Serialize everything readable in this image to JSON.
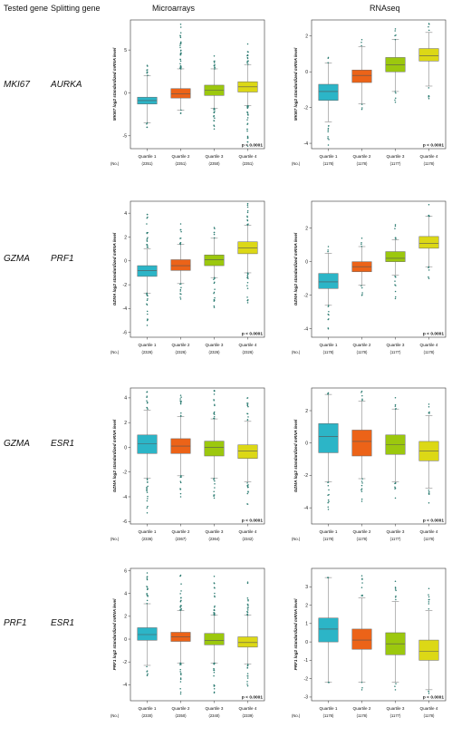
{
  "header": {
    "tested_gene": "Tested gene",
    "splitting_gene": "Splitting gene",
    "microarrays": "Microarrays",
    "rnaseq": "RNAseq"
  },
  "rows": [
    {
      "tested": "MKI67",
      "splitting": "AURKA"
    },
    {
      "tested": "GZMA",
      "splitting": "PRF1"
    },
    {
      "tested": "GZMA",
      "splitting": "ESR1"
    },
    {
      "tested": "PRF1",
      "splitting": "ESR1"
    }
  ],
  "colors": {
    "q1": "#2cb5c7",
    "q2": "#ec6318",
    "q3": "#9cc80e",
    "q4": "#dcd816",
    "outlier": "#2a7a70"
  },
  "chart_data": [
    {
      "type": "box",
      "panel": "microarray-mki67-aurka",
      "ylabel": "MKI67 log2 standardized mRNA level",
      "ylim": [
        -6.5,
        8.5
      ],
      "yticks": [
        -5,
        0,
        5
      ],
      "categories": [
        "Quartile 1",
        "Quartile 2",
        "Quartile 3",
        "Quartile 4"
      ],
      "n_label": "(No.)",
      "n": [
        "(2351)",
        "(2351)",
        "(2350)",
        "(2351)"
      ],
      "boxes": [
        {
          "whislo": -3.5,
          "q1": -1.3,
          "med": -0.9,
          "q3": -0.5,
          "whishi": 2.0,
          "outlo": -4.0,
          "outhi": 3.2
        },
        {
          "whislo": -2.0,
          "q1": -0.6,
          "med": -0.1,
          "q3": 0.5,
          "whishi": 2.8,
          "outlo": -2.4,
          "outhi": 8.0
        },
        {
          "whislo": -1.8,
          "q1": -0.3,
          "med": 0.3,
          "q3": 0.9,
          "whishi": 2.8,
          "outlo": -4.2,
          "outhi": 4.3
        },
        {
          "whislo": -1.5,
          "q1": 0.1,
          "med": 0.7,
          "q3": 1.3,
          "whishi": 3.3,
          "outlo": -6.2,
          "outhi": 5.7
        }
      ],
      "pvalue": "p < 0.0001"
    },
    {
      "type": "box",
      "panel": "rnaseq-mki67-aurka",
      "ylabel": "MKI67 log2 standardized mRNA level",
      "ylim": [
        -4.3,
        2.9
      ],
      "yticks": [
        -4,
        -2,
        0,
        2
      ],
      "categories": [
        "Quartile 1",
        "Quartile 2",
        "Quartile 3",
        "Quartile 4"
      ],
      "n_label": "(No.)",
      "n": [
        "(1178)",
        "(1178)",
        "(1177)",
        "(1178)"
      ],
      "boxes": [
        {
          "whislo": -2.8,
          "q1": -1.6,
          "med": -1.1,
          "q3": -0.7,
          "whishi": 0.5,
          "outlo": -4.1,
          "outhi": 0.8
        },
        {
          "whislo": -1.8,
          "q1": -0.6,
          "med": -0.2,
          "q3": 0.1,
          "whishi": 1.4,
          "outlo": -2.1,
          "outhi": 1.8
        },
        {
          "whislo": -1.1,
          "q1": 0.0,
          "med": 0.4,
          "q3": 0.8,
          "whishi": 1.8,
          "outlo": -1.7,
          "outhi": 2.4
        },
        {
          "whislo": -0.8,
          "q1": 0.6,
          "med": 0.9,
          "q3": 1.3,
          "whishi": 2.2,
          "outlo": -1.5,
          "outhi": 2.7
        }
      ],
      "pvalue": "p < 0.0001"
    },
    {
      "type": "box",
      "panel": "microarray-gzma-prf1",
      "ylabel": "GZMA log2 standardized mRNA level",
      "ylim": [
        -6.4,
        5.0
      ],
      "yticks": [
        -6,
        -4,
        -2,
        0,
        2,
        4
      ],
      "categories": [
        "Quartile 1",
        "Quartile 2",
        "Quartile 3",
        "Quartile 4"
      ],
      "n_label": "(No.)",
      "n": [
        "(2326)",
        "(2326)",
        "(2326)",
        "(2326)"
      ],
      "boxes": [
        {
          "whislo": -2.7,
          "q1": -1.3,
          "med": -0.8,
          "q3": -0.4,
          "whishi": 1.0,
          "outlo": -5.4,
          "outhi": 3.9
        },
        {
          "whislo": -1.9,
          "q1": -0.8,
          "med": -0.4,
          "q3": 0.1,
          "whishi": 1.4,
          "outlo": -3.2,
          "outhi": 3.1
        },
        {
          "whislo": -1.4,
          "q1": -0.4,
          "med": 0.1,
          "q3": 0.5,
          "whishi": 1.9,
          "outlo": -3.9,
          "outhi": 2.8
        },
        {
          "whislo": -1.0,
          "q1": 0.6,
          "med": 1.1,
          "q3": 1.6,
          "whishi": 3.0,
          "outlo": -3.5,
          "outhi": 4.8
        }
      ],
      "pvalue": "p < 0.0001"
    },
    {
      "type": "box",
      "panel": "rnaseq-gzma-prf1",
      "ylabel": "GZMA log2 standardized mRNA level",
      "ylim": [
        -4.5,
        3.6
      ],
      "yticks": [
        -4,
        -2,
        0,
        2
      ],
      "categories": [
        "Quartile 1",
        "Quartile 2",
        "Quartile 3",
        "Quartile 4"
      ],
      "n_label": "(No.)",
      "n": [
        "(1178)",
        "(1178)",
        "(1177)",
        "(1178)"
      ],
      "boxes": [
        {
          "whislo": -2.6,
          "q1": -1.6,
          "med": -1.2,
          "q3": -0.7,
          "whishi": 0.5,
          "outlo": -4.0,
          "outhi": 0.9
        },
        {
          "whislo": -1.4,
          "q1": -0.6,
          "med": -0.3,
          "q3": 0.0,
          "whishi": 0.9,
          "outlo": -2.0,
          "outhi": 1.4
        },
        {
          "whislo": -0.8,
          "q1": 0.0,
          "med": 0.2,
          "q3": 0.6,
          "whishi": 1.3,
          "outlo": -2.2,
          "outhi": 2.2
        },
        {
          "whislo": -0.3,
          "q1": 0.8,
          "med": 1.1,
          "q3": 1.5,
          "whishi": 2.7,
          "outlo": -1.0,
          "outhi": 3.4
        }
      ],
      "pvalue": "p < 0.0001"
    },
    {
      "type": "box",
      "panel": "microarray-gzma-esr1",
      "ylabel": "GZMA log2 standardized mRNA level",
      "ylim": [
        -6.2,
        4.8
      ],
      "yticks": [
        -6,
        -4,
        -2,
        0,
        2,
        4
      ],
      "categories": [
        "Quartile 1",
        "Quartile 2",
        "Quartile 3",
        "Quartile 4"
      ],
      "n_label": "(No.)",
      "n": [
        "(2336)",
        "(2367)",
        "(2364)",
        "(2342)"
      ],
      "boxes": [
        {
          "whislo": -2.5,
          "q1": -0.5,
          "med": 0.3,
          "q3": 1.0,
          "whishi": 3.0,
          "outlo": -5.3,
          "outhi": 4.5
        },
        {
          "whislo": -2.3,
          "q1": -0.5,
          "med": 0.1,
          "q3": 0.7,
          "whishi": 2.5,
          "outlo": -4.0,
          "outhi": 4.2
        },
        {
          "whislo": -2.5,
          "q1": -0.7,
          "med": 0.0,
          "q3": 0.5,
          "whishi": 2.3,
          "outlo": -4.1,
          "outhi": 4.6
        },
        {
          "whislo": -2.8,
          "q1": -0.9,
          "med": -0.3,
          "q3": 0.2,
          "whishi": 2.1,
          "outlo": -4.6,
          "outhi": 4.0
        }
      ],
      "pvalue": "p < 0.0001"
    },
    {
      "type": "box",
      "panel": "rnaseq-gzma-esr1",
      "ylabel": "GZMA log2 standardized mRNA level",
      "ylim": [
        -5.0,
        3.4
      ],
      "yticks": [
        -4,
        -2,
        0,
        2
      ],
      "categories": [
        "Quartile 1",
        "Quartile 2",
        "Quartile 3",
        "Quartile 4"
      ],
      "n_label": "(No.)",
      "n": [
        "(1178)",
        "(1178)",
        "(1177)",
        "(1178)"
      ],
      "boxes": [
        {
          "whislo": -2.4,
          "q1": -0.6,
          "med": 0.4,
          "q3": 1.2,
          "whishi": 3.0,
          "outlo": -4.1,
          "outhi": 3.1
        },
        {
          "whislo": -2.2,
          "q1": -0.8,
          "med": 0.1,
          "q3": 0.8,
          "whishi": 2.6,
          "outlo": -3.6,
          "outhi": 3.2
        },
        {
          "whislo": -2.4,
          "q1": -0.7,
          "med": -0.1,
          "q3": 0.5,
          "whishi": 2.1,
          "outlo": -3.4,
          "outhi": 2.8
        },
        {
          "whislo": -2.8,
          "q1": -1.1,
          "med": -0.5,
          "q3": 0.1,
          "whishi": 1.7,
          "outlo": -3.7,
          "outhi": 2.4
        }
      ],
      "pvalue": "p < 0.0001"
    },
    {
      "type": "box",
      "panel": "microarray-prf1-esr1",
      "ylabel": "PRF1 log2 standardized mRNA level",
      "ylim": [
        -5.4,
        6.2
      ],
      "yticks": [
        -4,
        -2,
        0,
        2,
        4,
        6
      ],
      "categories": [
        "Quartile 1",
        "Quartile 2",
        "Quartile 3",
        "Quartile 4"
      ],
      "n_label": "(No.)",
      "n": [
        "(2330)",
        "(2350)",
        "(2340)",
        "(2339)"
      ],
      "boxes": [
        {
          "whislo": -2.3,
          "q1": -0.1,
          "med": 0.4,
          "q3": 1.0,
          "whishi": 3.1,
          "outlo": -3.2,
          "outhi": 5.8
        },
        {
          "whislo": -2.1,
          "q1": -0.2,
          "med": 0.2,
          "q3": 0.6,
          "whishi": 2.5,
          "outlo": -4.8,
          "outhi": 5.6
        },
        {
          "whislo": -2.1,
          "q1": -0.5,
          "med": -0.1,
          "q3": 0.5,
          "whishi": 2.1,
          "outlo": -4.7,
          "outhi": 5.5
        },
        {
          "whislo": -2.2,
          "q1": -0.7,
          "med": -0.3,
          "q3": 0.2,
          "whishi": 2.1,
          "outlo": -4.1,
          "outhi": 5.0
        }
      ],
      "pvalue": "p < 0.0001"
    },
    {
      "type": "box",
      "panel": "rnaseq-prf1-esr1",
      "ylabel": "PRF1 log2 standardized mRNA level",
      "ylim": [
        -3.2,
        4.0
      ],
      "yticks": [
        -3,
        -2,
        -1,
        0,
        1,
        2,
        3
      ],
      "categories": [
        "Quartile 1",
        "Quartile 2",
        "Quartile 3",
        "Quartile 4"
      ],
      "n_label": "(No.)",
      "n": [
        "(1178)",
        "(1178)",
        "(1177)",
        "(1178)"
      ],
      "boxes": [
        {
          "whislo": -2.2,
          "q1": 0.0,
          "med": 0.7,
          "q3": 1.3,
          "whishi": 3.5,
          "outlo": -2.2,
          "outhi": 3.5
        },
        {
          "whislo": -2.2,
          "q1": -0.4,
          "med": 0.1,
          "q3": 0.7,
          "whishi": 2.4,
          "outlo": -2.6,
          "outhi": 3.6
        },
        {
          "whislo": -2.2,
          "q1": -0.7,
          "med": -0.1,
          "q3": 0.5,
          "whishi": 2.2,
          "outlo": -2.6,
          "outhi": 3.3
        },
        {
          "whislo": -2.6,
          "q1": -1.0,
          "med": -0.5,
          "q3": 0.1,
          "whishi": 1.7,
          "outlo": -2.8,
          "outhi": 2.9
        }
      ],
      "pvalue": "p < 0.0001"
    }
  ]
}
